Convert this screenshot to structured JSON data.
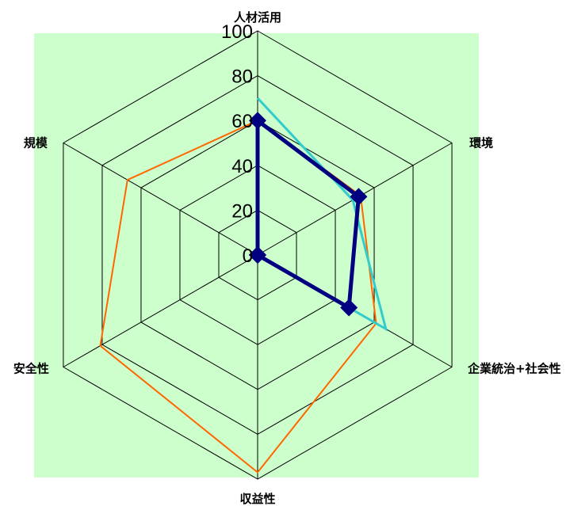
{
  "chart_data": {
    "type": "radar",
    "title": "",
    "axes": [
      "人材活用",
      "環境",
      "企業統治+社会性",
      "収益性",
      "安全性",
      "規模"
    ],
    "range": [
      0,
      100
    ],
    "ticks": [
      "0",
      "20",
      "40",
      "60",
      "80",
      "100"
    ],
    "tick_values": [
      0,
      20,
      40,
      60,
      80,
      100
    ],
    "grid": true,
    "background_color": "#ccffcc",
    "grid_color": "#000000",
    "series": [
      {
        "color": "#ff6600",
        "values": [
          60,
          53,
          61,
          97,
          81,
          67
        ],
        "stroke": 2,
        "markers": false
      },
      {
        "color": "#33cccc",
        "values": [
          70,
          49,
          66,
          0,
          0,
          0
        ],
        "stroke": 3,
        "markers": false,
        "closed": false
      },
      {
        "color": "#000080",
        "values": [
          60,
          52,
          47,
          0,
          0,
          0
        ],
        "stroke": 5,
        "markers": true
      }
    ]
  }
}
